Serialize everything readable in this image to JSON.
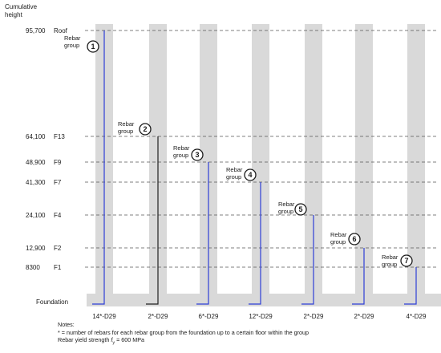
{
  "y_axis_title_line1": "Cumulative",
  "y_axis_title_line2": "height",
  "levels": [
    {
      "key": "roof",
      "height": "95,700",
      "floor": "Roof"
    },
    {
      "key": "f13",
      "height": "64,100",
      "floor": "F13"
    },
    {
      "key": "f9",
      "height": "48,900",
      "floor": "F9"
    },
    {
      "key": "f7",
      "height": "41,300",
      "floor": "F7"
    },
    {
      "key": "f4",
      "height": "24,100",
      "floor": "F4"
    },
    {
      "key": "f2",
      "height": "12,900",
      "floor": "F2"
    },
    {
      "key": "f1",
      "height": "8300",
      "floor": "F1"
    }
  ],
  "foundation_label": "Foundation",
  "group_label_line1": "Rebar",
  "group_label_line2": "group",
  "groups": [
    {
      "number": "1",
      "rebar": "14*-D29",
      "top_level": "roof"
    },
    {
      "number": "2",
      "rebar": "2*-D29",
      "top_level": "f13"
    },
    {
      "number": "3",
      "rebar": "6*-D29",
      "top_level": "f9"
    },
    {
      "number": "4",
      "rebar": "12*-D29",
      "top_level": "f7"
    },
    {
      "number": "5",
      "rebar": "2*-D29",
      "top_level": "f4"
    },
    {
      "number": "6",
      "rebar": "2*-D29",
      "top_level": "f2"
    },
    {
      "number": "7",
      "rebar": "4*-D29",
      "top_level": "f1"
    }
  ],
  "notes": {
    "heading": "Notes:",
    "line1": "* = number of rebars for each rebar group from the foundation up to a certain floor within the group",
    "line2_prefix": "Rebar yield strength ",
    "line2_symbol": "f",
    "line2_subscript": "y",
    "line2_suffix": " = 600 MPa"
  },
  "colors": {
    "column": "#d9d9d9",
    "rebar": "#2f3fd6",
    "rebar_group2": "#222222",
    "floor_line": "#555555",
    "text": "#1a1a1a"
  }
}
